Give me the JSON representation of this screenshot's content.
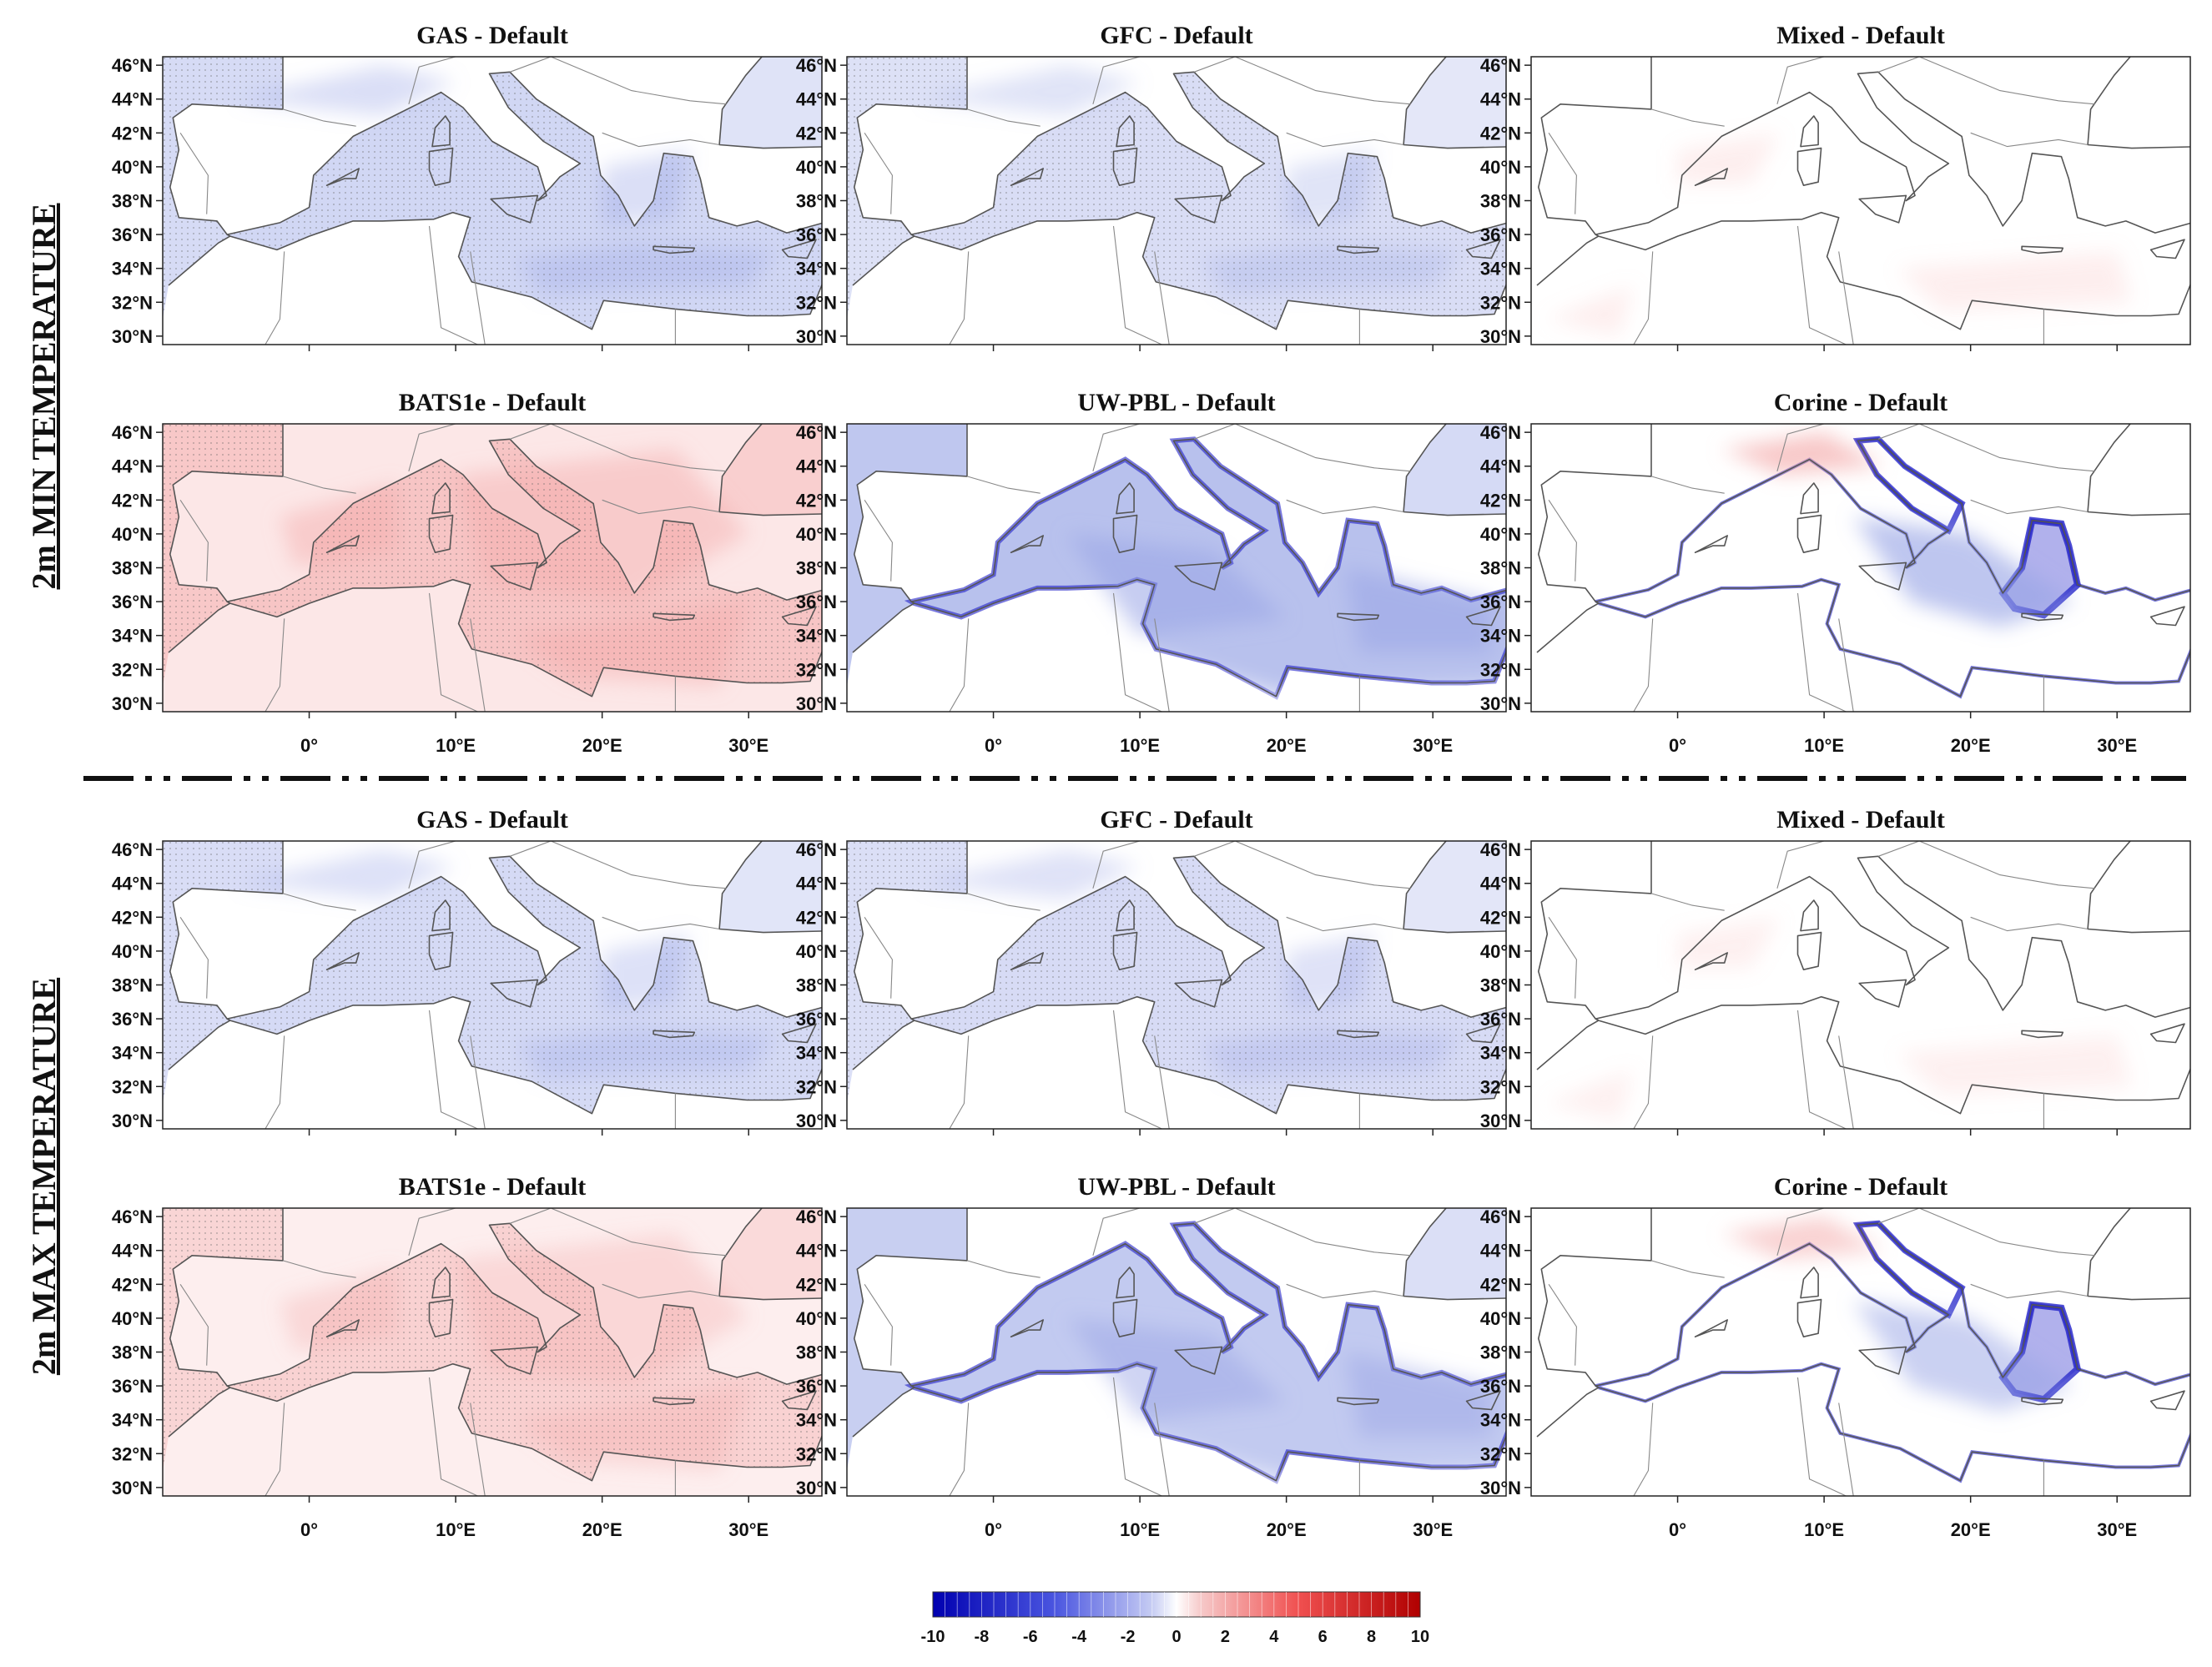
{
  "figure": {
    "row_labels": [
      "2m MIN TEMPERATURE",
      "2m MAX TEMPERATURE"
    ],
    "lat_ticks": [
      "46°N",
      "44°N",
      "42°N",
      "40°N",
      "38°N",
      "36°N",
      "34°N",
      "32°N",
      "30°N"
    ],
    "lon_ticks": [
      "0°",
      "10°E",
      "20°E",
      "30°E"
    ],
    "panels": [
      {
        "title": "GAS - Default",
        "style": "cool",
        "strength": 0.45,
        "stipple": true
      },
      {
        "title": "GFC - Default",
        "style": "cool",
        "strength": 0.38,
        "stipple": true
      },
      {
        "title": "Mixed - Default",
        "style": "mixed",
        "strength": 0.25,
        "stipple": false
      },
      {
        "title": "BATS1e - Default",
        "style": "warm",
        "strength": 0.55,
        "stipple": true
      },
      {
        "title": "UW-PBL - Default",
        "style": "uwpbl",
        "strength": 0.7,
        "stipple": false
      },
      {
        "title": "Corine - Default",
        "style": "corine",
        "strength": 0.8,
        "stipple": false
      },
      {
        "title": "GAS - Default",
        "style": "cool",
        "strength": 0.42,
        "stipple": true
      },
      {
        "title": "GFC - Default",
        "style": "cool",
        "strength": 0.4,
        "stipple": true
      },
      {
        "title": "Mixed - Default",
        "style": "mixed",
        "strength": 0.22,
        "stipple": false
      },
      {
        "title": "BATS1e - Default",
        "style": "warm",
        "strength": 0.4,
        "stipple": true
      },
      {
        "title": "UW-PBL - Default",
        "style": "uwpbl",
        "strength": 0.6,
        "stipple": false
      },
      {
        "title": "Corine - Default",
        "style": "corine",
        "strength": 0.65,
        "stipple": false
      }
    ],
    "colorbar": {
      "ticks": [
        "-10",
        "-8",
        "-6",
        "-4",
        "-2",
        "0",
        "2",
        "4",
        "6",
        "8",
        "10"
      ],
      "min": -10,
      "max": 10
    },
    "colors": {
      "cool": "#9aa6e6",
      "warm": "#f4a9a9",
      "deep_blue": "#2020c8",
      "coast": "#555555"
    }
  }
}
